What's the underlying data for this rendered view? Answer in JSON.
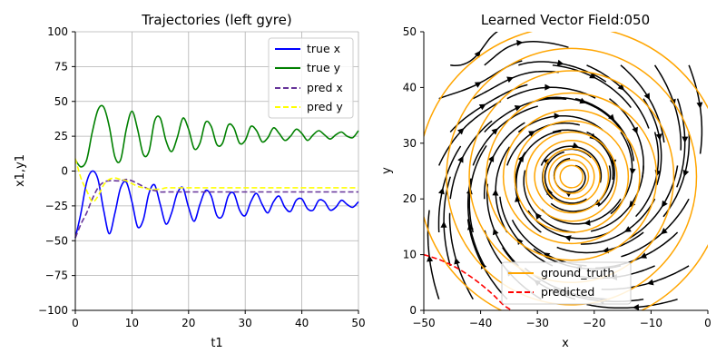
{
  "colors": {
    "true_x": "#0000ff",
    "true_y": "#008000",
    "pred_x": "#663399",
    "pred_y": "#ffff00",
    "ground_truth": "#ffa500",
    "predicted": "#ff0000",
    "stream": "#000000",
    "grid": "#b0b0b0"
  },
  "chart_data": [
    {
      "type": "line",
      "title": "Trajectories (left gyre)",
      "xlabel": "t1",
      "ylabel": "x1,y1",
      "xlim": [
        0,
        50
      ],
      "ylim": [
        -100,
        100
      ],
      "xticks": [
        "0",
        "10",
        "20",
        "30",
        "40",
        "50"
      ],
      "yticks": [
        "100",
        "75",
        "50",
        "25",
        "0",
        "−25",
        "−50",
        "−75",
        "−100"
      ],
      "grid": true,
      "legend_position": "top-right",
      "series": [
        {
          "name": "true x",
          "style": "solid",
          "color": "#0000ff",
          "x": [
            0,
            1,
            2,
            3,
            4,
            5,
            6,
            7,
            8,
            9,
            10,
            11,
            12,
            13,
            14,
            15,
            16,
            17,
            18,
            19,
            20,
            21,
            22,
            23,
            24,
            25,
            26,
            27,
            28,
            29,
            30,
            31,
            32,
            33,
            34,
            35,
            36,
            37,
            38,
            39,
            40,
            41,
            42,
            43,
            44,
            45,
            46,
            47,
            48,
            49,
            50
          ],
          "values": [
            -48,
            -30,
            -8,
            0,
            -6,
            -28,
            -45,
            -30,
            -12,
            -8,
            -22,
            -40,
            -35,
            -16,
            -10,
            -24,
            -38,
            -30,
            -16,
            -12,
            -26,
            -36,
            -24,
            -14,
            -18,
            -32,
            -32,
            -18,
            -16,
            -28,
            -32,
            -22,
            -16,
            -24,
            -30,
            -22,
            -18,
            -26,
            -29,
            -21,
            -20,
            -27,
            -28,
            -21,
            -22,
            -28,
            -26,
            -21,
            -24,
            -26,
            -22
          ]
        },
        {
          "name": "true y",
          "style": "solid",
          "color": "#008000",
          "x": [
            0,
            1,
            2,
            3,
            4,
            5,
            6,
            7,
            8,
            9,
            10,
            11,
            12,
            13,
            14,
            15,
            16,
            17,
            18,
            19,
            20,
            21,
            22,
            23,
            24,
            25,
            26,
            27,
            28,
            29,
            30,
            31,
            32,
            33,
            34,
            35,
            36,
            37,
            38,
            39,
            40,
            41,
            42,
            43,
            44,
            45,
            46,
            47,
            48,
            49,
            50
          ],
          "values": [
            8,
            3,
            8,
            28,
            44,
            46,
            32,
            10,
            8,
            30,
            43,
            30,
            12,
            14,
            36,
            38,
            22,
            14,
            24,
            38,
            30,
            16,
            20,
            35,
            32,
            19,
            20,
            33,
            31,
            20,
            22,
            32,
            29,
            21,
            24,
            31,
            27,
            22,
            25,
            30,
            27,
            22,
            26,
            29,
            26,
            23,
            26,
            28,
            25,
            24,
            29
          ]
        },
        {
          "name": "pred x",
          "style": "dashed",
          "color": "#663399",
          "x": [
            0,
            1,
            2,
            3,
            4,
            5,
            6,
            7,
            8,
            9,
            10,
            11,
            12,
            13,
            14,
            15,
            16,
            17,
            18,
            19,
            20,
            22,
            24,
            26,
            28,
            30,
            35,
            40,
            45,
            50
          ],
          "values": [
            -48,
            -38,
            -30,
            -20,
            -12,
            -8,
            -7,
            -7,
            -7,
            -6,
            -7,
            -9,
            -11,
            -13,
            -14,
            -15,
            -15,
            -15,
            -15,
            -15,
            -15,
            -15,
            -15,
            -15,
            -15,
            -15,
            -15,
            -15,
            -15,
            -15
          ]
        },
        {
          "name": "pred y",
          "style": "dashed",
          "color": "#ffff00",
          "x": [
            0,
            1,
            2,
            3,
            4,
            5,
            6,
            7,
            8,
            9,
            10,
            11,
            12,
            13,
            14,
            15,
            16,
            17,
            18,
            20,
            22,
            24,
            26,
            28,
            30,
            35,
            40,
            45,
            50
          ],
          "values": [
            9,
            -5,
            -14,
            -22,
            -18,
            -10,
            -6,
            -5,
            -6,
            -7,
            -9,
            -11,
            -12,
            -13,
            -13,
            -13,
            -12,
            -12,
            -12,
            -12,
            -12,
            -12,
            -12,
            -12,
            -12,
            -12,
            -12,
            -12,
            -12
          ]
        }
      ]
    },
    {
      "type": "streamplot",
      "title": "Learned Vector Field:050",
      "xlabel": "x",
      "ylabel": "y",
      "xlim": [
        -50,
        0
      ],
      "ylim": [
        0,
        50
      ],
      "xticks": [
        "−50",
        "−40",
        "−30",
        "−20",
        "−10",
        "0"
      ],
      "yticks": [
        "50",
        "40",
        "30",
        "20",
        "10",
        "0"
      ],
      "grid": false,
      "legend_position": "lower-center",
      "gyre_center": [
        -24,
        24
      ],
      "series": [
        {
          "name": "ground_truth",
          "style": "solid",
          "color": "#ffa500",
          "description_of_shape": "spiral",
          "radii_x": [
            27,
            22,
            18,
            15,
            12,
            10,
            8,
            6.5,
            5,
            4,
            3,
            2
          ],
          "radii_y": [
            27,
            23,
            19,
            15,
            12,
            10,
            8,
            6.5,
            5,
            4,
            3,
            2
          ]
        },
        {
          "name": "predicted",
          "style": "dashed",
          "color": "#ff0000",
          "x": [
            -50,
            -47,
            -44,
            -41,
            -38,
            -36,
            -34.5
          ],
          "y": [
            10,
            9,
            7.5,
            5.5,
            3,
            1,
            0
          ]
        }
      ]
    }
  ]
}
